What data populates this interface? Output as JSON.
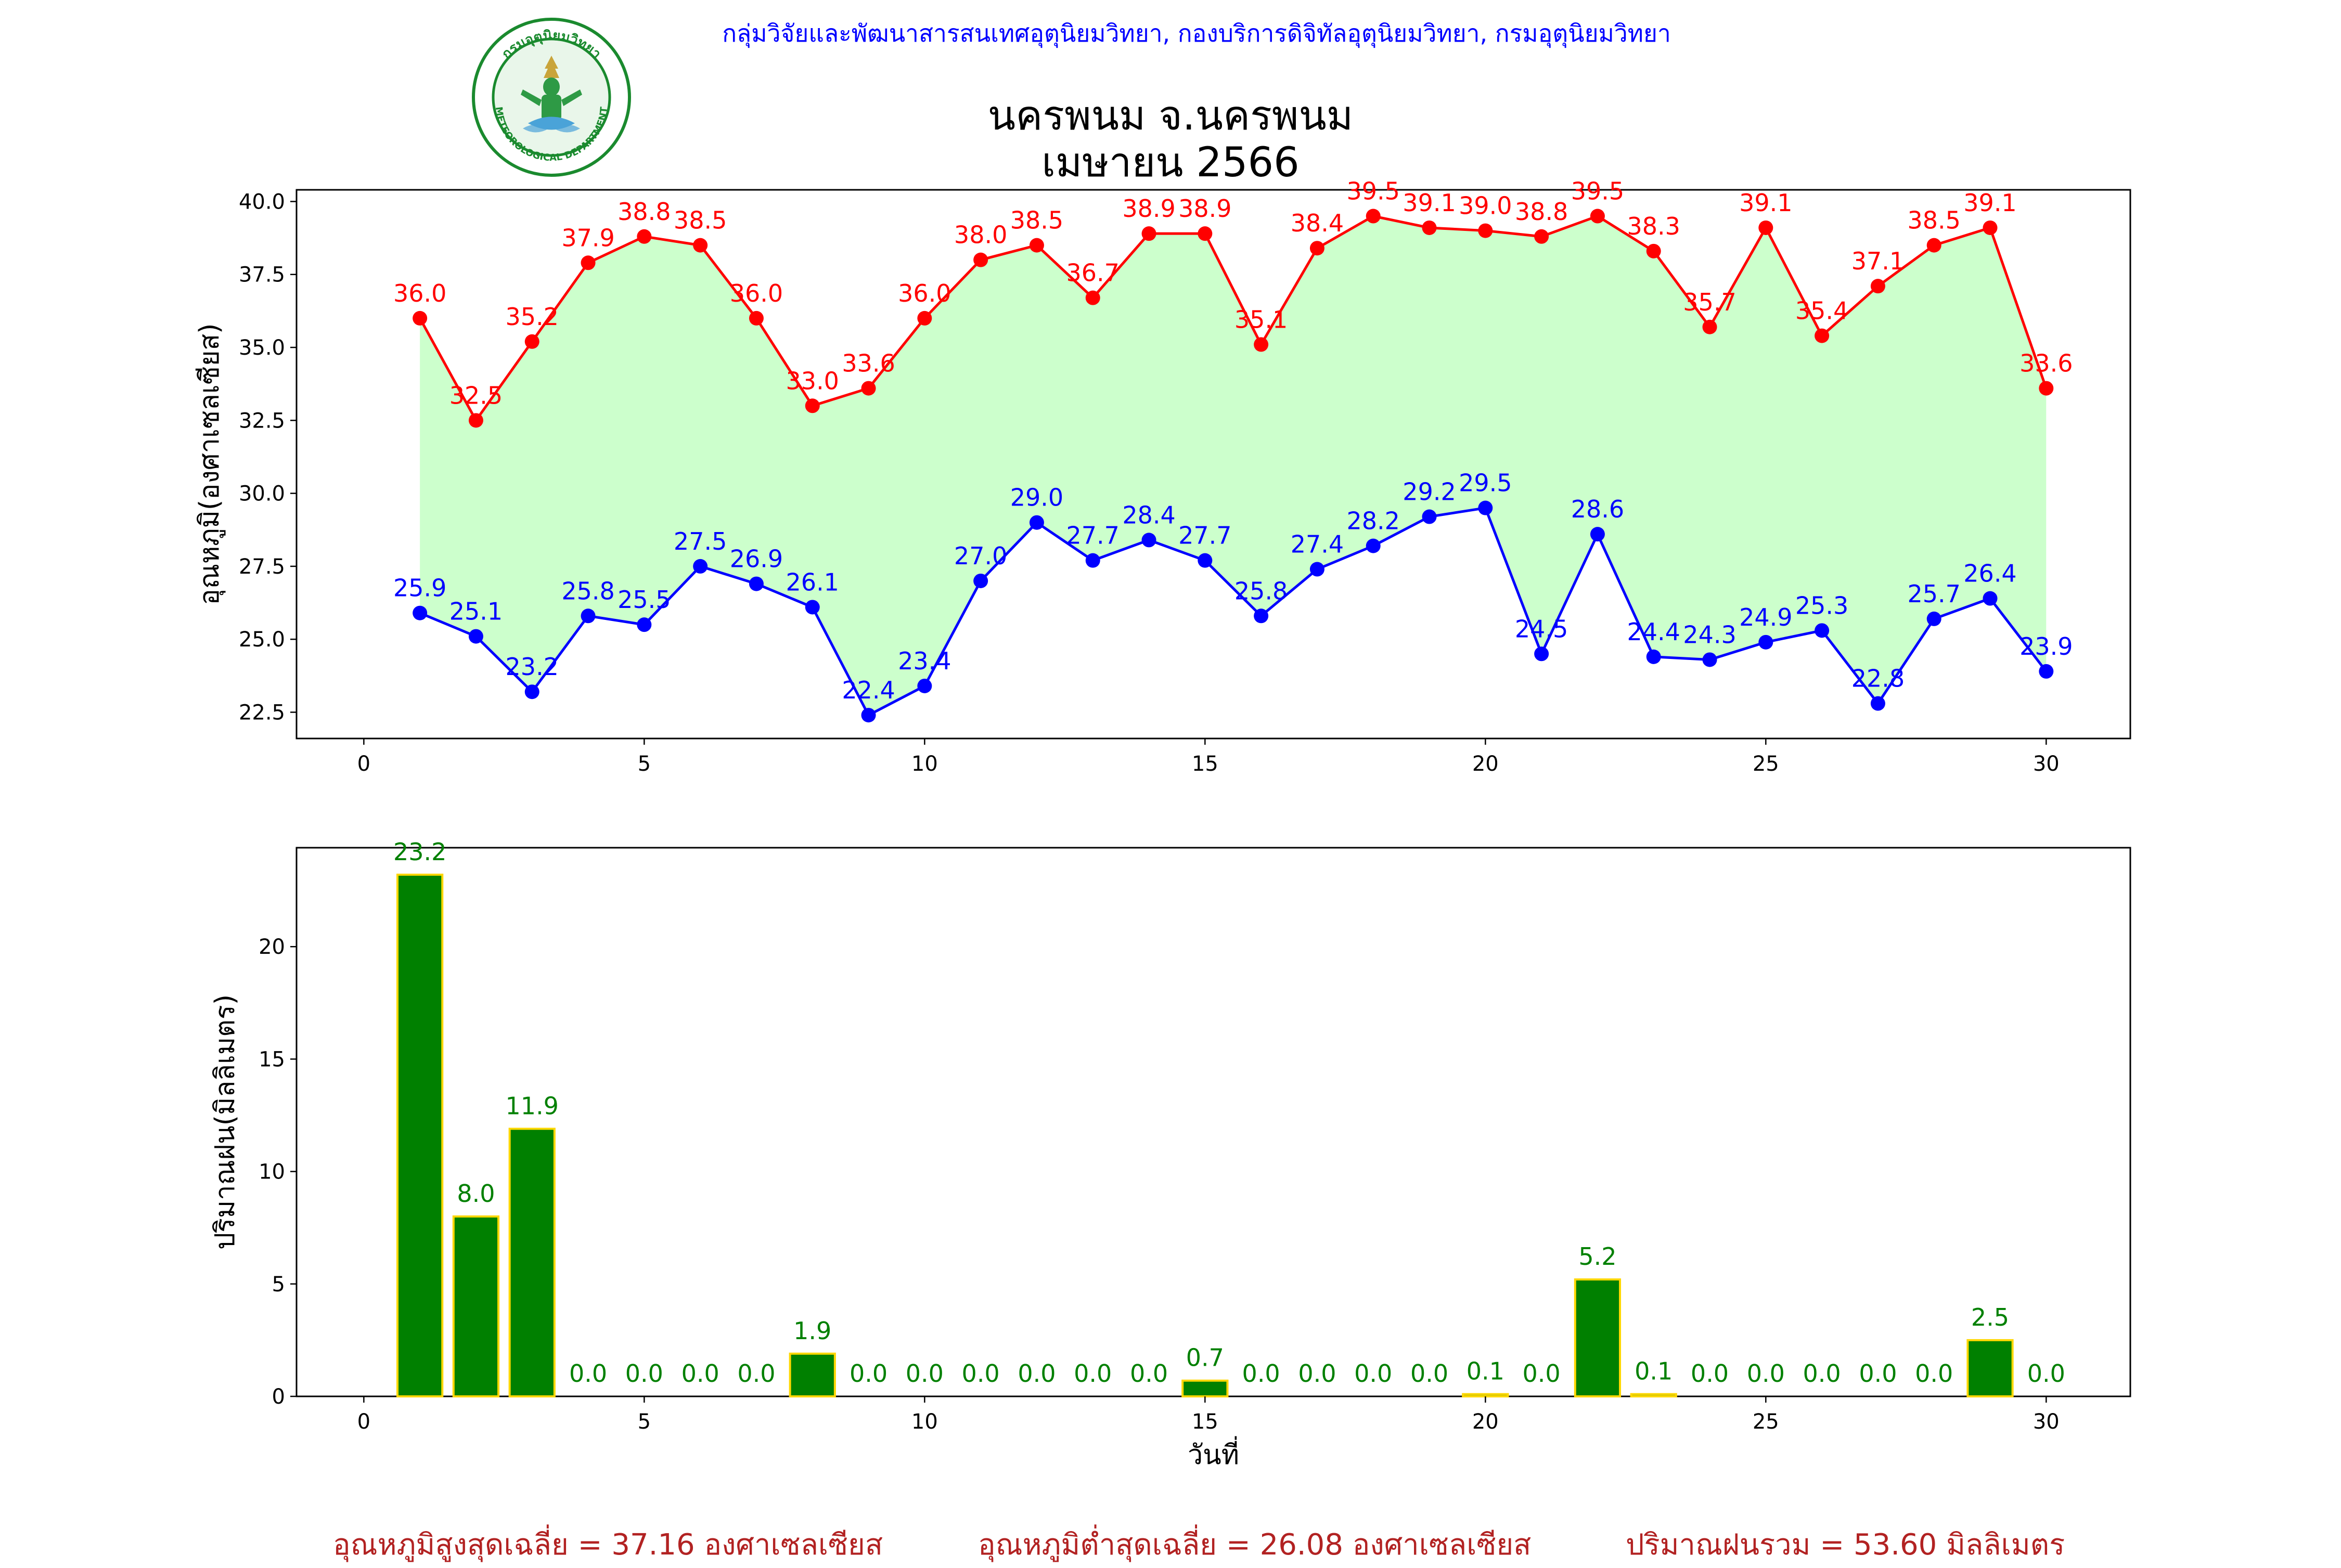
{
  "header": {
    "organization": "กลุ่มวิจัยและพัฒนาสารสนเทศอุตุนิยมวิทยา, กองบริการดิจิทัลอุตุนิยมวิทยา, กรมอุตุนิยมวิทยา",
    "station": "นครพนม จ.นครพนม",
    "month": "เมษายน 2566",
    "logo": {
      "text_top": "กรมอุตุนิยมวิทยา",
      "text_bottom": "METEOROLOGICAL DEPARTMENT"
    }
  },
  "colors": {
    "max_line": "#ff0000",
    "min_line": "#0000ff",
    "fill": "#ccffcc",
    "rain_bar": "#008000",
    "rain_edge": "#ffd700",
    "rain_label": "#008000",
    "footer_text": "#b22222"
  },
  "chart_data": [
    {
      "type": "line",
      "ylabel": "อุณหภูมิ(องศาเซลเซียส)",
      "xlabel": "",
      "x": [
        1,
        2,
        3,
        4,
        5,
        6,
        7,
        8,
        9,
        10,
        11,
        12,
        13,
        14,
        15,
        16,
        17,
        18,
        19,
        20,
        21,
        22,
        23,
        24,
        25,
        26,
        27,
        28,
        29,
        30
      ],
      "xlim": [
        -1.2,
        31.5
      ],
      "ylim": [
        21.6,
        40.4
      ],
      "xticks": [
        0,
        5,
        10,
        15,
        20,
        25,
        30
      ],
      "yticks": [
        22.5,
        25.0,
        27.5,
        30.0,
        32.5,
        35.0,
        37.5,
        40.0
      ],
      "series": [
        {
          "values": [
            36.0,
            32.5,
            35.2,
            37.9,
            38.8,
            38.5,
            36.0,
            33.0,
            33.6,
            36.0,
            38.0,
            38.5,
            36.7,
            38.9,
            38.9,
            35.1,
            38.4,
            39.5,
            39.1,
            39.0,
            38.8,
            39.5,
            38.3,
            35.7,
            39.1,
            35.4,
            37.1,
            38.5,
            39.1,
            33.6
          ]
        },
        {
          "values": [
            25.9,
            25.1,
            23.2,
            25.8,
            25.5,
            27.5,
            26.9,
            26.1,
            22.4,
            23.4,
            27.0,
            29.0,
            27.7,
            28.4,
            27.7,
            25.8,
            27.4,
            28.2,
            29.2,
            29.5,
            24.5,
            28.6,
            24.4,
            24.3,
            24.9,
            25.3,
            22.8,
            25.7,
            26.4,
            23.9
          ]
        }
      ],
      "grid": false,
      "fill_between": true
    },
    {
      "type": "bar",
      "ylabel": "ปริมาณฝน(มิลลิเมตร)",
      "xlabel": "วันที่",
      "x": [
        1,
        2,
        3,
        4,
        5,
        6,
        7,
        8,
        9,
        10,
        11,
        12,
        13,
        14,
        15,
        16,
        17,
        18,
        19,
        20,
        21,
        22,
        23,
        24,
        25,
        26,
        27,
        28,
        29,
        30
      ],
      "xlim": [
        -1.2,
        31.5
      ],
      "ylim": [
        0,
        24.4
      ],
      "xticks": [
        0,
        5,
        10,
        15,
        20,
        25,
        30
      ],
      "yticks": [
        0,
        5,
        10,
        15,
        20
      ],
      "values": [
        23.2,
        8.0,
        11.9,
        0.0,
        0.0,
        0.0,
        0.0,
        1.9,
        0.0,
        0.0,
        0.0,
        0.0,
        0.0,
        0.0,
        0.7,
        0.0,
        0.0,
        0.0,
        0.0,
        0.1,
        0.0,
        5.2,
        0.1,
        0.0,
        0.0,
        0.0,
        0.0,
        0.0,
        2.5,
        0.0
      ],
      "grid": false
    }
  ],
  "footer": {
    "avg_max": "อุณหภูมิสูงสุดเฉลี่ย = 37.16 องศาเซลเซียส",
    "avg_min": "อุณหภูมิต่ำสุดเฉลี่ย = 26.08 องศาเซลเซียส",
    "rain_total": "ปริมาณฝนรวม = 53.60 มิลลิเมตร"
  }
}
